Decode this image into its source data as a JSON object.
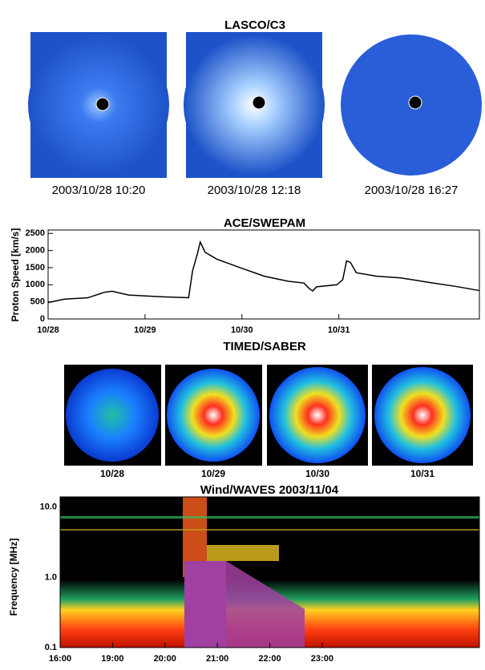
{
  "chart_data": [
    {
      "type": "image",
      "title": "LASCO/C3",
      "captions": [
        "2003/10/28 10:20",
        "2003/10/28 12:18",
        "2003/10/28 16:27"
      ]
    },
    {
      "type": "line",
      "title": "ACE/SWEPAM",
      "y_label": "Proton Speed [km/s]",
      "xlim": [
        0,
        4.45
      ],
      "xticks": [
        {
          "value": 0,
          "label": "10/28"
        },
        {
          "value": 1,
          "label": "10/29"
        },
        {
          "value": 2,
          "label": "10/30"
        },
        {
          "value": 3,
          "label": "10/31"
        }
      ],
      "ylim": [
        0,
        2600
      ],
      "yticks": [
        0,
        500,
        1000,
        1500,
        2000,
        2500
      ],
      "series": [
        {
          "color": "#000000",
          "x": [
            0,
            0.17,
            0.41,
            0.58,
            0.66,
            0.83,
            1.16,
            1.45,
            1.49,
            1.54,
            1.57,
            1.62,
            1.74,
            1.98,
            2.23,
            2.48,
            2.64,
            2.69,
            2.73,
            2.77,
            2.98,
            3.04,
            3.08,
            3.12,
            3.18,
            3.39,
            3.64,
            3.97,
            4.21,
            4.45
          ],
          "values": [
            480,
            580,
            620,
            780,
            810,
            700,
            650,
            620,
            1400,
            1900,
            2250,
            1950,
            1750,
            1500,
            1250,
            1100,
            1050,
            900,
            820,
            940,
            1000,
            1150,
            1700,
            1650,
            1350,
            1250,
            1200,
            1050,
            950,
            830
          ]
        }
      ]
    },
    {
      "type": "image",
      "title": "TIMED/SABER",
      "captions": [
        "10/28",
        "10/29",
        "10/30",
        "10/31"
      ]
    },
    {
      "type": "spectrogram",
      "title": "Wind/WAVES   2003/11/04",
      "y_label": "Frequency [MHz]",
      "log_y": true,
      "ylim": [
        0.1,
        14
      ],
      "yticks": [
        0.1,
        {
          "value": 1,
          "label": "1.0"
        },
        {
          "value": 10,
          "label": "10.0"
        }
      ],
      "xlim": [
        16,
        24
      ],
      "xticks": [
        {
          "value": 16,
          "label": "16:00"
        },
        {
          "value": 17,
          "label": "19:00"
        },
        {
          "value": 18,
          "label": "20:00"
        },
        {
          "value": 19,
          "label": "21:00"
        },
        {
          "value": 20,
          "label": "22:00"
        },
        {
          "value": 21,
          "label": "23:00"
        }
      ]
    }
  ]
}
